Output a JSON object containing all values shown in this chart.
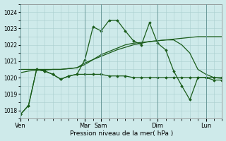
{
  "xlabel": "Pression niveau de la mer( hPa )",
  "ylim": [
    1017.5,
    1024.5
  ],
  "yticks": [
    1018,
    1019,
    1020,
    1021,
    1022,
    1023,
    1024
  ],
  "background_color": "#ceeaea",
  "grid_color": "#aacfcf",
  "line_color": "#1a5c1a",
  "day_labels": [
    "Ven",
    "Mar",
    "Sam",
    "Dim",
    "Lun"
  ],
  "day_positions": [
    0,
    8,
    10,
    17,
    23
  ],
  "xlim": [
    0,
    25
  ],
  "series_flat_x": [
    0,
    1,
    2,
    3,
    4,
    5,
    6,
    7,
    8,
    9,
    10,
    11,
    12,
    13,
    14,
    15,
    16,
    17,
    18,
    19,
    20,
    21,
    22,
    23,
    24,
    25
  ],
  "series_flat_y": [
    1017.75,
    1018.3,
    1020.5,
    1020.4,
    1020.2,
    1019.9,
    1020.1,
    1020.2,
    1020.2,
    1020.2,
    1020.2,
    1020.1,
    1020.1,
    1020.1,
    1020.0,
    1020.0,
    1020.0,
    1020.0,
    1020.0,
    1020.0,
    1020.0,
    1020.0,
    1020.0,
    1020.0,
    1020.0,
    1020.0
  ],
  "series_zigzag_x": [
    0,
    1,
    2,
    3,
    4,
    5,
    6,
    7,
    8,
    9,
    10,
    11,
    12,
    13,
    14,
    15,
    16,
    17,
    18,
    19,
    20,
    21,
    22,
    23,
    24,
    25
  ],
  "series_zigzag_y": [
    1017.75,
    1018.3,
    1020.5,
    1020.4,
    1020.2,
    1019.9,
    1020.1,
    1020.2,
    1021.1,
    1023.1,
    1022.85,
    1023.5,
    1023.5,
    1022.85,
    1022.25,
    1022.0,
    1023.35,
    1022.1,
    1021.7,
    1020.4,
    1019.5,
    1018.65,
    1020.0,
    1020.0,
    1019.85,
    1019.85
  ],
  "series_smooth1_x": [
    0,
    1,
    2,
    3,
    4,
    5,
    6,
    7,
    8,
    9,
    10,
    11,
    12,
    13,
    14,
    15,
    16,
    17,
    18,
    19,
    20,
    21,
    22,
    23,
    24,
    25
  ],
  "series_smooth1_y": [
    1020.3,
    1020.4,
    1020.45,
    1020.45,
    1020.5,
    1020.5,
    1020.55,
    1020.6,
    1020.8,
    1021.1,
    1021.3,
    1021.5,
    1021.7,
    1021.85,
    1022.0,
    1022.1,
    1022.2,
    1022.25,
    1022.3,
    1022.3,
    1022.0,
    1021.5,
    1020.5,
    1020.2,
    1020.0,
    1019.95
  ],
  "series_smooth2_x": [
    0,
    1,
    2,
    3,
    4,
    5,
    6,
    7,
    8,
    9,
    10,
    11,
    12,
    13,
    14,
    15,
    16,
    17,
    18,
    19,
    20,
    21,
    22,
    23,
    24,
    25
  ],
  "series_smooth2_y": [
    1020.5,
    1020.5,
    1020.5,
    1020.5,
    1020.5,
    1020.5,
    1020.55,
    1020.6,
    1020.9,
    1021.1,
    1021.4,
    1021.6,
    1021.8,
    1022.0,
    1022.1,
    1022.15,
    1022.2,
    1022.25,
    1022.3,
    1022.35,
    1022.4,
    1022.45,
    1022.5,
    1022.5,
    1022.5,
    1022.5
  ]
}
